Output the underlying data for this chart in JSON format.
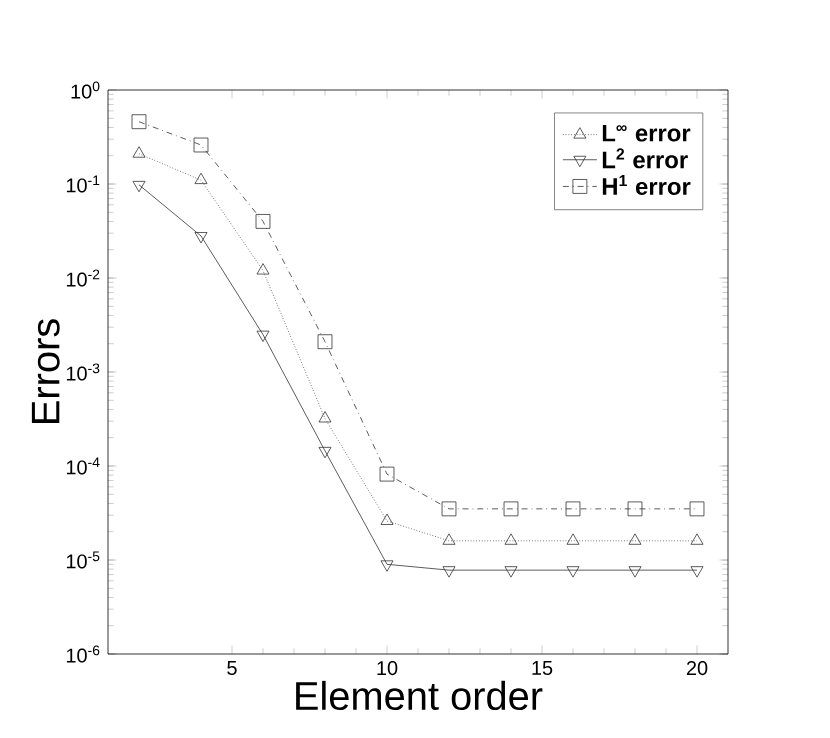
{
  "chart_data": {
    "type": "line",
    "xlabel": "Element order",
    "ylabel": "Errors",
    "log": "y",
    "legend": "top right",
    "grid": false,
    "xlim": [
      1,
      21
    ],
    "xticks": [
      5,
      10,
      15,
      20
    ],
    "ylim": [
      1e-06,
      1
    ],
    "yticks": [
      {
        "value": 1e-06,
        "label": "10$^{-6}$"
      },
      {
        "value": 1e-05,
        "label": "10$^{-5}$"
      },
      {
        "value": 0.0001,
        "label": "10$^{-4}$"
      },
      {
        "value": 0.001,
        "label": "10$^{-3}$"
      },
      {
        "value": 0.01,
        "label": "10$^{-2}$"
      },
      {
        "value": 0.1,
        "label": "10$^{-1}$"
      },
      {
        "value": 1,
        "label": "10$^{0}$"
      }
    ],
    "x": [
      2,
      4,
      6,
      8,
      10,
      12,
      14,
      16,
      18,
      20
    ],
    "series": [
      {
        "name": "L$^{∞}$ error",
        "color": "#333333",
        "marker": "triangle",
        "line_style": "dotted",
        "values": [
          0.21,
          0.11,
          0.012,
          0.00032,
          2.6e-05,
          1.6e-05,
          1.6e-05,
          1.6e-05,
          1.6e-05,
          1.6e-05
        ]
      },
      {
        "name": "L$^{2}$ error",
        "color": "#333333",
        "marker": "triangle-down",
        "line_style": "solid",
        "values": [
          0.098,
          0.028,
          0.0025,
          0.000145,
          9e-06,
          7.8e-06,
          7.8e-06,
          7.8e-06,
          7.8e-06,
          7.8e-06
        ]
      },
      {
        "name": "H$^{1}$ error",
        "color": "#333333",
        "marker": "square",
        "line_style": "dashdot",
        "values": [
          0.46,
          0.26,
          0.04,
          0.0021,
          8.2e-05,
          3.5e-05,
          3.5e-05,
          3.5e-05,
          3.5e-05,
          3.5e-05
        ]
      }
    ]
  }
}
